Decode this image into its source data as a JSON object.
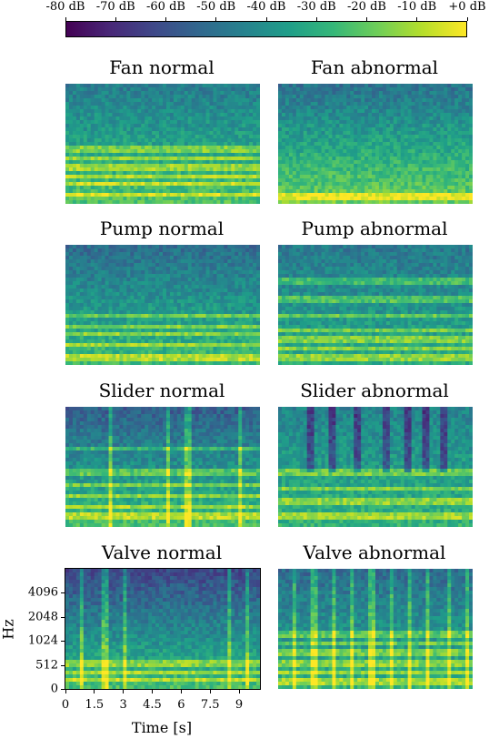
{
  "colorbar": {
    "ticks": [
      "-80 dB",
      "-70 dB",
      "-60 dB",
      "-50 dB",
      "-40 dB",
      "-30 dB",
      "-20 dB",
      "-10 dB",
      "+0 dB"
    ],
    "colormap": [
      "#440154",
      "#482878",
      "#3e4989",
      "#31688e",
      "#26828e",
      "#1f9e89",
      "#35b779",
      "#6ece58",
      "#b5de2b",
      "#fde725"
    ]
  },
  "chart_data": {
    "type": "heatmap",
    "panels": [
      {
        "title": "Fan normal"
      },
      {
        "title": "Fan abnormal"
      },
      {
        "title": "Pump normal"
      },
      {
        "title": "Pump abnormal"
      },
      {
        "title": "Slider normal"
      },
      {
        "title": "Slider abnormal"
      },
      {
        "title": "Valve normal"
      },
      {
        "title": "Valve abnormal"
      }
    ],
    "xlabel": "Time [s]",
    "ylabel": "Hz",
    "xticks": [
      "0",
      "1.5",
      "3",
      "4.5",
      "6",
      "7.5",
      "9"
    ],
    "yticks": [
      "0",
      "512",
      "1024",
      "2048",
      "4096"
    ],
    "zlim_db": [
      -80,
      0
    ]
  }
}
